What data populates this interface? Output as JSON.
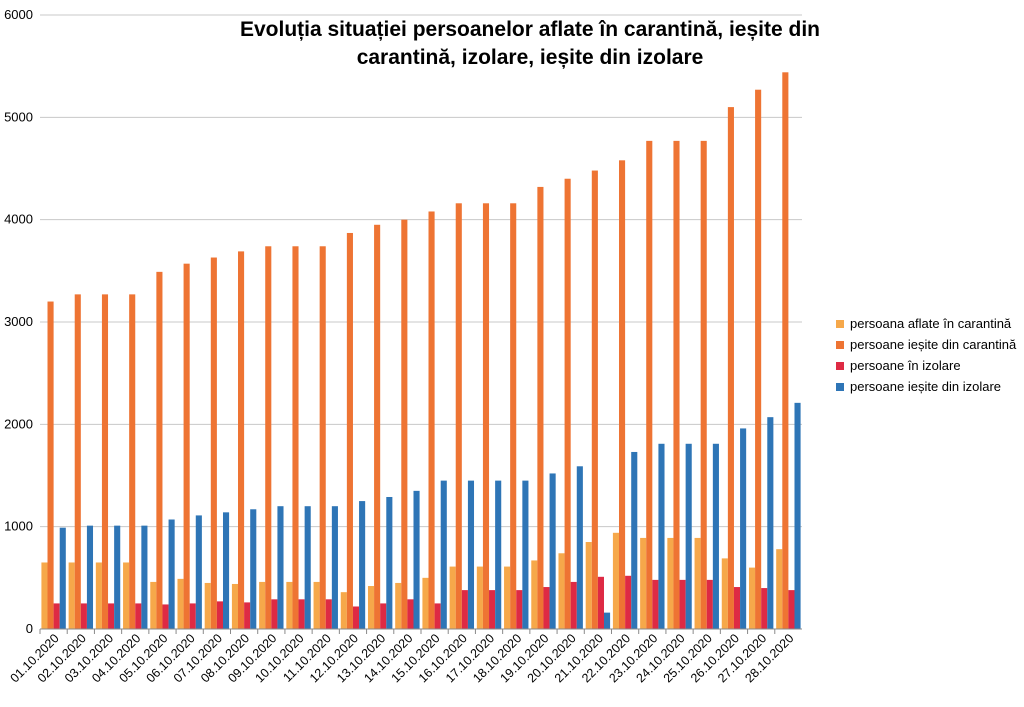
{
  "chart_data": {
    "type": "bar",
    "title_line1": "Evoluția situației persoanelor aflate în carantină, ieșite din",
    "title_line2": "carantină, izolare, ieșite din izolare",
    "xlabel": "",
    "ylabel": "",
    "ylim": [
      0,
      6000
    ],
    "yticks": [
      0,
      1000,
      2000,
      3000,
      4000,
      5000,
      6000
    ],
    "grid": true,
    "legend_position": "right",
    "categories": [
      "01.10.2020",
      "02.10.2020",
      "03.10.2020",
      "04.10.2020",
      "05.10.2020",
      "06.10.2020",
      "07.10.2020",
      "08.10.2020",
      "09.10.2020",
      "10.10.2020",
      "11.10.2020",
      "12.10.2020",
      "13.10.2020",
      "14.10.2020",
      "15.10.2020",
      "16.10.2020",
      "17.10.2020",
      "18.10.2020",
      "19.10.2020",
      "20.10.2020",
      "21.10.2020",
      "22.10.2020",
      "23.10.2020",
      "24.10.2020",
      "25.10.2020",
      "26.10.2020",
      "27.10.2020",
      "28.10.2020"
    ],
    "series": [
      {
        "name": "persoana aflate în carantină",
        "color": "#f6a84a",
        "values": [
          650,
          650,
          650,
          650,
          460,
          490,
          450,
          440,
          460,
          460,
          460,
          360,
          420,
          450,
          500,
          610,
          610,
          610,
          670,
          740,
          850,
          940,
          890,
          890,
          890,
          690,
          600,
          780
        ]
      },
      {
        "name": "persoane ieșite din carantină",
        "color": "#ee7433",
        "values": [
          3200,
          3270,
          3270,
          3270,
          3490,
          3570,
          3630,
          3690,
          3740,
          3740,
          3740,
          3870,
          3950,
          4000,
          4080,
          4160,
          4160,
          4160,
          4320,
          4400,
          4480,
          4580,
          4770,
          4770,
          4770,
          5100,
          5270,
          5440
        ]
      },
      {
        "name": "persoane în izolare",
        "color": "#de2a44",
        "values": [
          250,
          250,
          250,
          250,
          240,
          250,
          270,
          260,
          290,
          290,
          290,
          220,
          250,
          290,
          250,
          380,
          380,
          380,
          410,
          460,
          510,
          520,
          480,
          480,
          480,
          410,
          400,
          380
        ]
      },
      {
        "name": "persoane ieșite din izolare",
        "color": "#2e75b6",
        "values": [
          990,
          1010,
          1010,
          1010,
          1070,
          1110,
          1140,
          1170,
          1200,
          1200,
          1200,
          1250,
          1290,
          1350,
          1450,
          1450,
          1450,
          1450,
          1520,
          1590,
          160,
          1730,
          1810,
          1810,
          1810,
          1960,
          2070,
          2210
        ]
      }
    ]
  }
}
